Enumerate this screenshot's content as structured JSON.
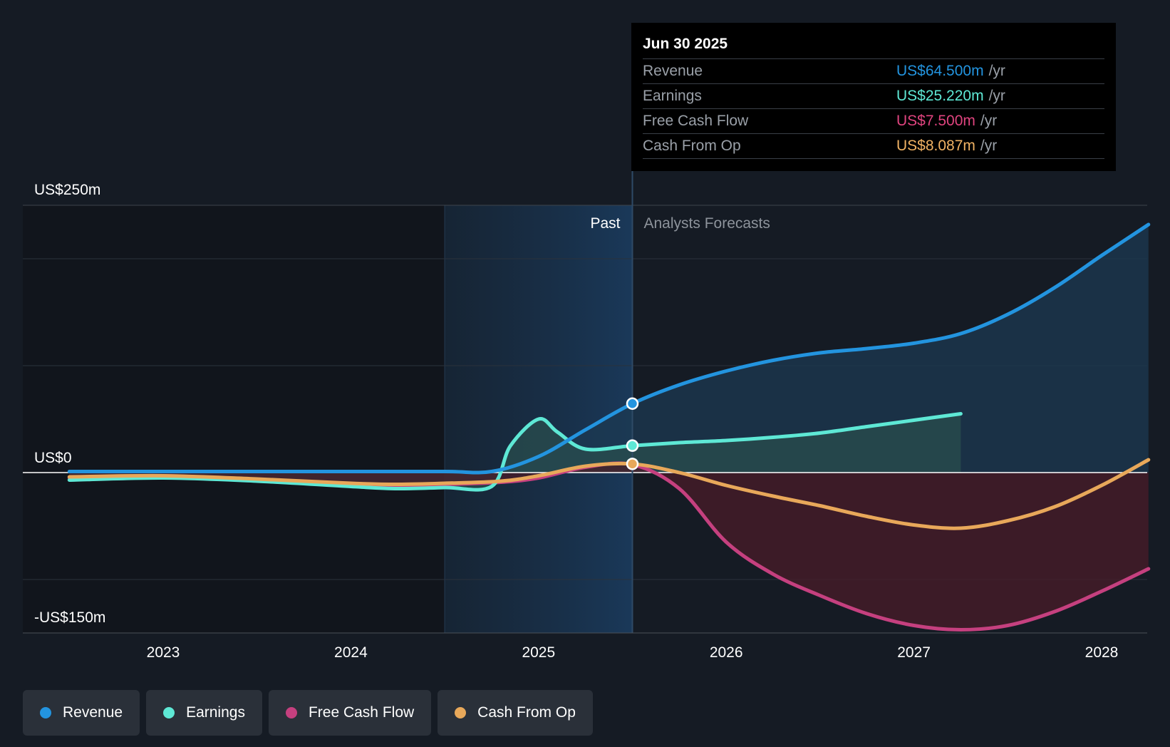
{
  "tooltip": {
    "date": "Jun 30 2025",
    "rows": [
      {
        "label": "Revenue",
        "value": "US$64.500m",
        "unit": "/yr",
        "color": "#2394df"
      },
      {
        "label": "Earnings",
        "value": "US$25.220m",
        "unit": "/yr",
        "color": "#5ee8d5"
      },
      {
        "label": "Free Cash Flow",
        "value": "US$7.500m",
        "unit": "/yr",
        "color": "#e0447f"
      },
      {
        "label": "Cash From Op",
        "value": "US$8.087m",
        "unit": "/yr",
        "color": "#f1b364"
      }
    ]
  },
  "labels": {
    "past": "Past",
    "forecast": "Analysts Forecasts"
  },
  "legend": [
    {
      "label": "Revenue",
      "color": "#2394df"
    },
    {
      "label": "Earnings",
      "color": "#5ee8d5"
    },
    {
      "label": "Free Cash Flow",
      "color": "#c5407f"
    },
    {
      "label": "Cash From Op",
      "color": "#e8a85a"
    }
  ],
  "chart_data": {
    "type": "line",
    "title": "",
    "xlabel": "",
    "ylabel": "",
    "xlim": [
      2022.25,
      2028.25
    ],
    "ylim": [
      -150,
      250
    ],
    "x_ticks": [
      2023,
      2024,
      2025,
      2026,
      2027,
      2028
    ],
    "x_tick_labels": [
      "2023",
      "2024",
      "2025",
      "2026",
      "2027",
      "2028"
    ],
    "y_tick_labels": [
      {
        "value": 250,
        "label": "US$250m"
      },
      {
        "value": 0,
        "label": "US$0"
      },
      {
        "value": -150,
        "label": "-US$150m"
      }
    ],
    "gridlines": [
      250,
      200,
      100,
      -100,
      -150
    ],
    "past_region": [
      2024.5,
      2025.5
    ],
    "divider_x": 2025.5,
    "series": [
      {
        "name": "Revenue",
        "color": "#2394df",
        "fill": "#1c3a52",
        "points": [
          [
            2022.5,
            1
          ],
          [
            2023,
            1
          ],
          [
            2023.5,
            1
          ],
          [
            2024,
            1
          ],
          [
            2024.5,
            1
          ],
          [
            2024.75,
            1
          ],
          [
            2025,
            15
          ],
          [
            2025.25,
            40
          ],
          [
            2025.5,
            64.5
          ],
          [
            2025.75,
            82
          ],
          [
            2026,
            95
          ],
          [
            2026.25,
            105
          ],
          [
            2026.5,
            112
          ],
          [
            2026.75,
            116
          ],
          [
            2027,
            121
          ],
          [
            2027.25,
            130
          ],
          [
            2027.5,
            148
          ],
          [
            2027.75,
            173
          ],
          [
            2028,
            203
          ],
          [
            2028.25,
            232
          ]
        ]
      },
      {
        "name": "Earnings",
        "color": "#5ee8d5",
        "fill": "#2a4d4e",
        "points": [
          [
            2022.5,
            -7
          ],
          [
            2023,
            -5
          ],
          [
            2023.5,
            -8
          ],
          [
            2024,
            -13
          ],
          [
            2024.25,
            -15
          ],
          [
            2024.5,
            -14
          ],
          [
            2024.75,
            -13
          ],
          [
            2024.85,
            25
          ],
          [
            2025,
            50
          ],
          [
            2025.1,
            38
          ],
          [
            2025.25,
            22
          ],
          [
            2025.5,
            25.2
          ],
          [
            2025.75,
            28
          ],
          [
            2026,
            30
          ],
          [
            2026.25,
            33
          ],
          [
            2026.5,
            37
          ],
          [
            2026.75,
            43
          ],
          [
            2027,
            49
          ],
          [
            2027.25,
            55
          ]
        ]
      },
      {
        "name": "Free Cash Flow",
        "color": "#c5407f",
        "fill": "#4a1c28",
        "points": [
          [
            2022.5,
            -5
          ],
          [
            2023,
            -3
          ],
          [
            2023.5,
            -7
          ],
          [
            2024,
            -11
          ],
          [
            2024.25,
            -12
          ],
          [
            2024.5,
            -11
          ],
          [
            2024.8,
            -9
          ],
          [
            2025,
            -5
          ],
          [
            2025.25,
            5
          ],
          [
            2025.5,
            7.5
          ],
          [
            2025.75,
            -15
          ],
          [
            2026,
            -65
          ],
          [
            2026.25,
            -95
          ],
          [
            2026.5,
            -115
          ],
          [
            2026.75,
            -132
          ],
          [
            2027,
            -143
          ],
          [
            2027.25,
            -147
          ],
          [
            2027.5,
            -143
          ],
          [
            2027.75,
            -130
          ],
          [
            2028,
            -111
          ],
          [
            2028.25,
            -90
          ]
        ]
      },
      {
        "name": "Cash From Op",
        "color": "#e8a85a",
        "fill": "none",
        "points": [
          [
            2022.5,
            -4
          ],
          [
            2023,
            -3
          ],
          [
            2023.5,
            -6
          ],
          [
            2024,
            -10
          ],
          [
            2024.25,
            -11
          ],
          [
            2024.5,
            -10
          ],
          [
            2024.8,
            -8
          ],
          [
            2025,
            -3
          ],
          [
            2025.25,
            6
          ],
          [
            2025.5,
            8.087
          ],
          [
            2025.75,
            0
          ],
          [
            2026,
            -12
          ],
          [
            2026.25,
            -22
          ],
          [
            2026.5,
            -31
          ],
          [
            2026.75,
            -41
          ],
          [
            2027,
            -49
          ],
          [
            2027.25,
            -52
          ],
          [
            2027.5,
            -45
          ],
          [
            2027.75,
            -32
          ],
          [
            2028,
            -12
          ],
          [
            2028.25,
            12
          ]
        ]
      }
    ],
    "markers": [
      {
        "series": "Revenue",
        "x": 2025.5,
        "y": 64.5
      },
      {
        "series": "Earnings",
        "x": 2025.5,
        "y": 25.22
      },
      {
        "series": "Cash From Op",
        "x": 2025.5,
        "y": 8.087
      }
    ]
  }
}
